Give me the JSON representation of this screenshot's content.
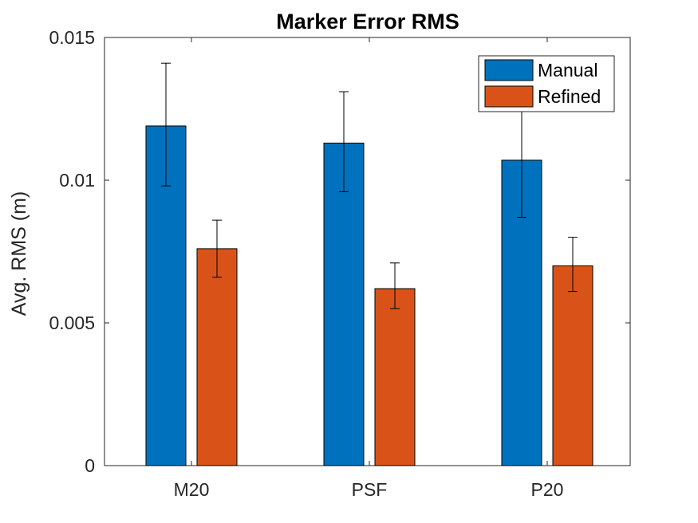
{
  "chart_data": {
    "type": "bar",
    "title": "Marker Error RMS",
    "xlabel": "",
    "ylabel": "Avg. RMS (m)",
    "categories": [
      "M20",
      "PSF",
      "P20"
    ],
    "ylim": [
      0,
      0.015
    ],
    "yticks": [
      0,
      0.005,
      0.01,
      0.015
    ],
    "ytick_labels": [
      "0",
      "0.005",
      "0.01",
      "0.015"
    ],
    "series": [
      {
        "name": "Manual",
        "color": "#0072BD",
        "values": [
          0.0119,
          0.0113,
          0.0107
        ],
        "error_low": [
          0.0098,
          0.0096,
          0.0087
        ],
        "error_high": [
          0.0141,
          0.0131,
          0.0127
        ]
      },
      {
        "name": "Refined",
        "color": "#D95319",
        "values": [
          0.0076,
          0.0062,
          0.007
        ],
        "error_low": [
          0.0066,
          0.0055,
          0.0061
        ],
        "error_high": [
          0.0086,
          0.0071,
          0.008
        ]
      }
    ],
    "grid": false,
    "legend_position": "top-right",
    "box": true
  }
}
